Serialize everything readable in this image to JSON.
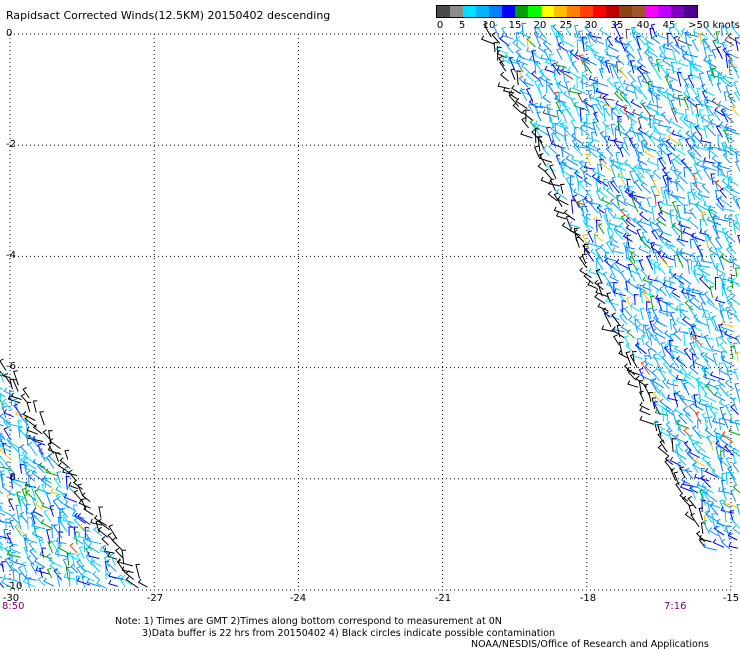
{
  "title": "Rapidsact Corrected Winds(12.5KM) 20150402 descending",
  "legend": {
    "colors": [
      "#4a4a4a",
      "#8c8c8c",
      "#00e0ff",
      "#00b4ff",
      "#0080ff",
      "#0000ff",
      "#00a000",
      "#00ff00",
      "#ffff00",
      "#ffc000",
      "#ff8000",
      "#ff4000",
      "#ff0000",
      "#c00000",
      "#8b4513",
      "#a0522d",
      "#ff00ff",
      "#c000ff",
      "#8000c0",
      "#500090"
    ],
    "labels": [
      "0",
      "5",
      "10",
      "15",
      "20",
      "25",
      "30",
      "35",
      "40",
      "45",
      ">50 knots"
    ]
  },
  "axes": {
    "x_ticks": [
      "-27",
      "-24",
      "-21",
      "-18",
      "-15"
    ],
    "x_tick_values": [
      -27,
      -24,
      -21,
      -18,
      -15
    ],
    "y_ticks": [
      "0",
      "-2",
      "-4",
      "-6",
      "-8",
      "-10"
    ],
    "y_tick_values": [
      0,
      -2,
      -4,
      -6,
      -8,
      -10
    ],
    "x_left_label": "-30",
    "xlim": [
      -30,
      -15
    ],
    "ylim": [
      -10,
      0
    ]
  },
  "times": {
    "left": "8:50",
    "right": "7:16"
  },
  "notes": {
    "line1": "Note: 1) Times are GMT 2)Times along bottom correspond to measurement at 0N",
    "line2": "3)Data buffer is 22 hrs from 20150402 4) Black circles indicate possible contamination"
  },
  "credit": "NOAA/NESDIS/Office of Research and Applications",
  "swaths": {
    "east": {
      "edge_top_lon": -20.1,
      "edge_bottom_lon": -15.2
    },
    "west": {
      "edge_top_lat": -6.0,
      "edge_bottom_lon": -27.1
    }
  }
}
